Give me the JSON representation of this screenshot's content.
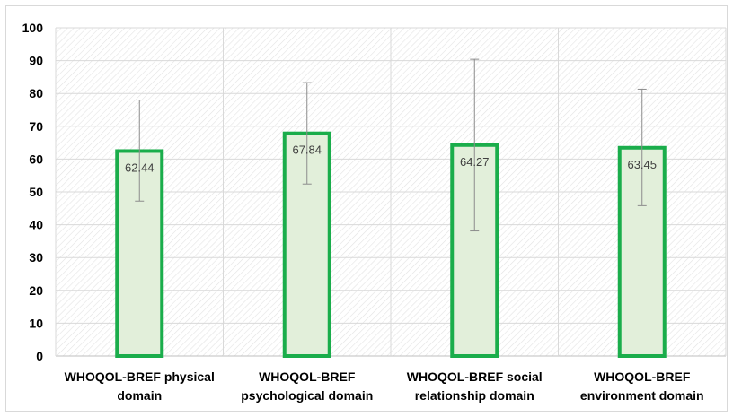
{
  "chart_data": {
    "type": "bar",
    "categories": [
      [
        "WHOQOL-BREF physical",
        "domain"
      ],
      [
        "WHOQOL-BREF",
        "psychological domain"
      ],
      [
        "WHOQOL-BREF social",
        "relationship domain"
      ],
      [
        "WHOQOL-BREF",
        "environment domain"
      ]
    ],
    "values": [
      62.44,
      67.84,
      64.27,
      63.45
    ],
    "value_labels": [
      "62.44",
      "67.84",
      "64.27",
      "63.45"
    ],
    "error_bars": [
      {
        "low": 47.2,
        "high": 78.0
      },
      {
        "low": 52.4,
        "high": 83.3
      },
      {
        "low": 38.1,
        "high": 90.4
      },
      {
        "low": 45.8,
        "high": 81.3
      }
    ],
    "title": "",
    "xlabel": "",
    "ylabel": "",
    "ylim": [
      0,
      100
    ],
    "yticks": [
      "0",
      "10",
      "20",
      "30",
      "40",
      "50",
      "60",
      "70",
      "80",
      "90",
      "100"
    ],
    "grid": true,
    "legend": "none",
    "colors": {
      "bar_fill": "#e2efda",
      "bar_edge": "#1aad4b",
      "error_bar": "#8c8c8c",
      "grid": "#d9d9d9",
      "plot_hatch": "#e6e6e6"
    }
  }
}
